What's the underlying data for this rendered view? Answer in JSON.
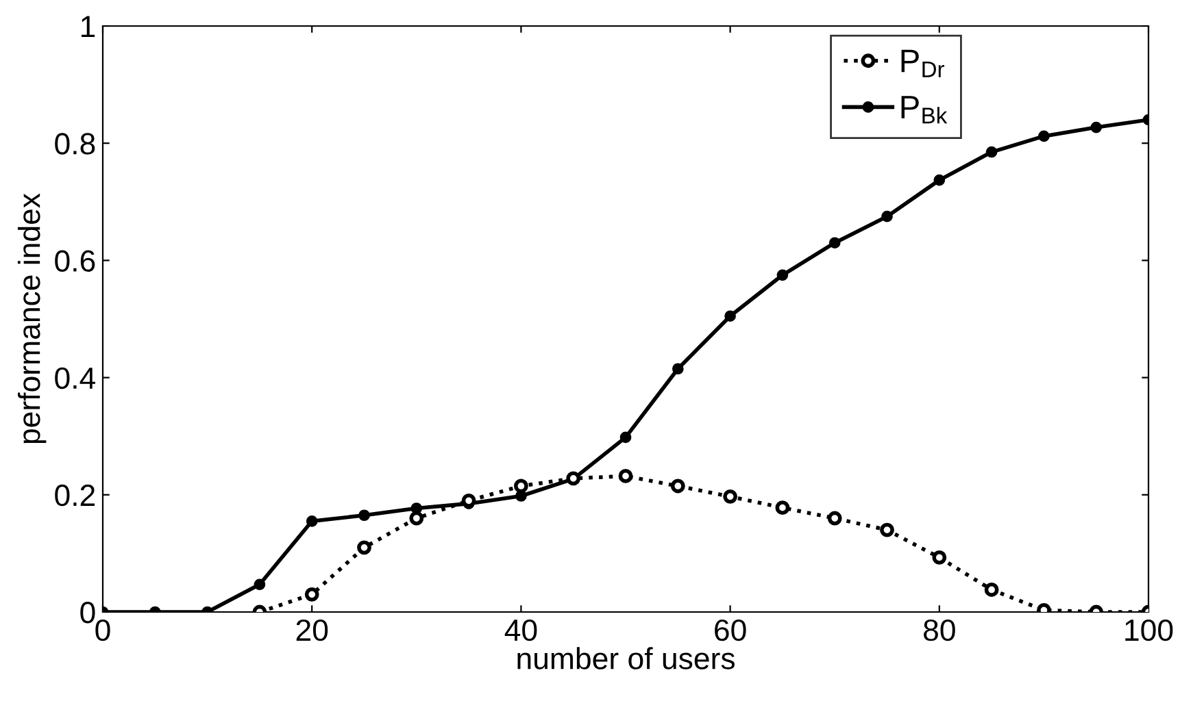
{
  "chart_data": {
    "type": "line",
    "xlabel": "number of users",
    "ylabel": "performance index",
    "x": [
      0,
      5,
      10,
      15,
      20,
      25,
      30,
      35,
      40,
      45,
      50,
      55,
      60,
      65,
      70,
      75,
      80,
      85,
      90,
      95,
      100
    ],
    "series": [
      {
        "name": "P$_{Dr}$",
        "color": "#000000",
        "line_style": "dotted",
        "x": [
          15,
          20,
          25,
          30,
          35,
          40,
          45,
          50,
          55,
          60,
          65,
          70,
          75,
          80,
          85,
          90,
          95,
          100
        ],
        "values": [
          0,
          0.03,
          0.11,
          0.16,
          0.19,
          0.215,
          0.228,
          0.232,
          0.215,
          0.197,
          0.178,
          0.16,
          0.14,
          0.093,
          0.038,
          0.003,
          0,
          0
        ]
      },
      {
        "name": "P$_{Bk}$",
        "color": "#000000",
        "line_style": "solid",
        "values": [
          0,
          0,
          0,
          0.047,
          0.155,
          0.165,
          0.177,
          0.185,
          0.198,
          0.227,
          0.298,
          0.415,
          0.505,
          0.575,
          0.63,
          0.675,
          0.737,
          0.785,
          0.812,
          0.827,
          0.84
        ]
      }
    ],
    "marker": "circle",
    "xlim": [
      0,
      100
    ],
    "ylim": [
      0,
      1
    ],
    "xticks": [
      0,
      20,
      40,
      60,
      80,
      100
    ],
    "yticks": [
      0,
      0.2,
      0.4,
      0.6,
      0.8,
      1
    ],
    "grid": false,
    "legend": "top right"
  }
}
